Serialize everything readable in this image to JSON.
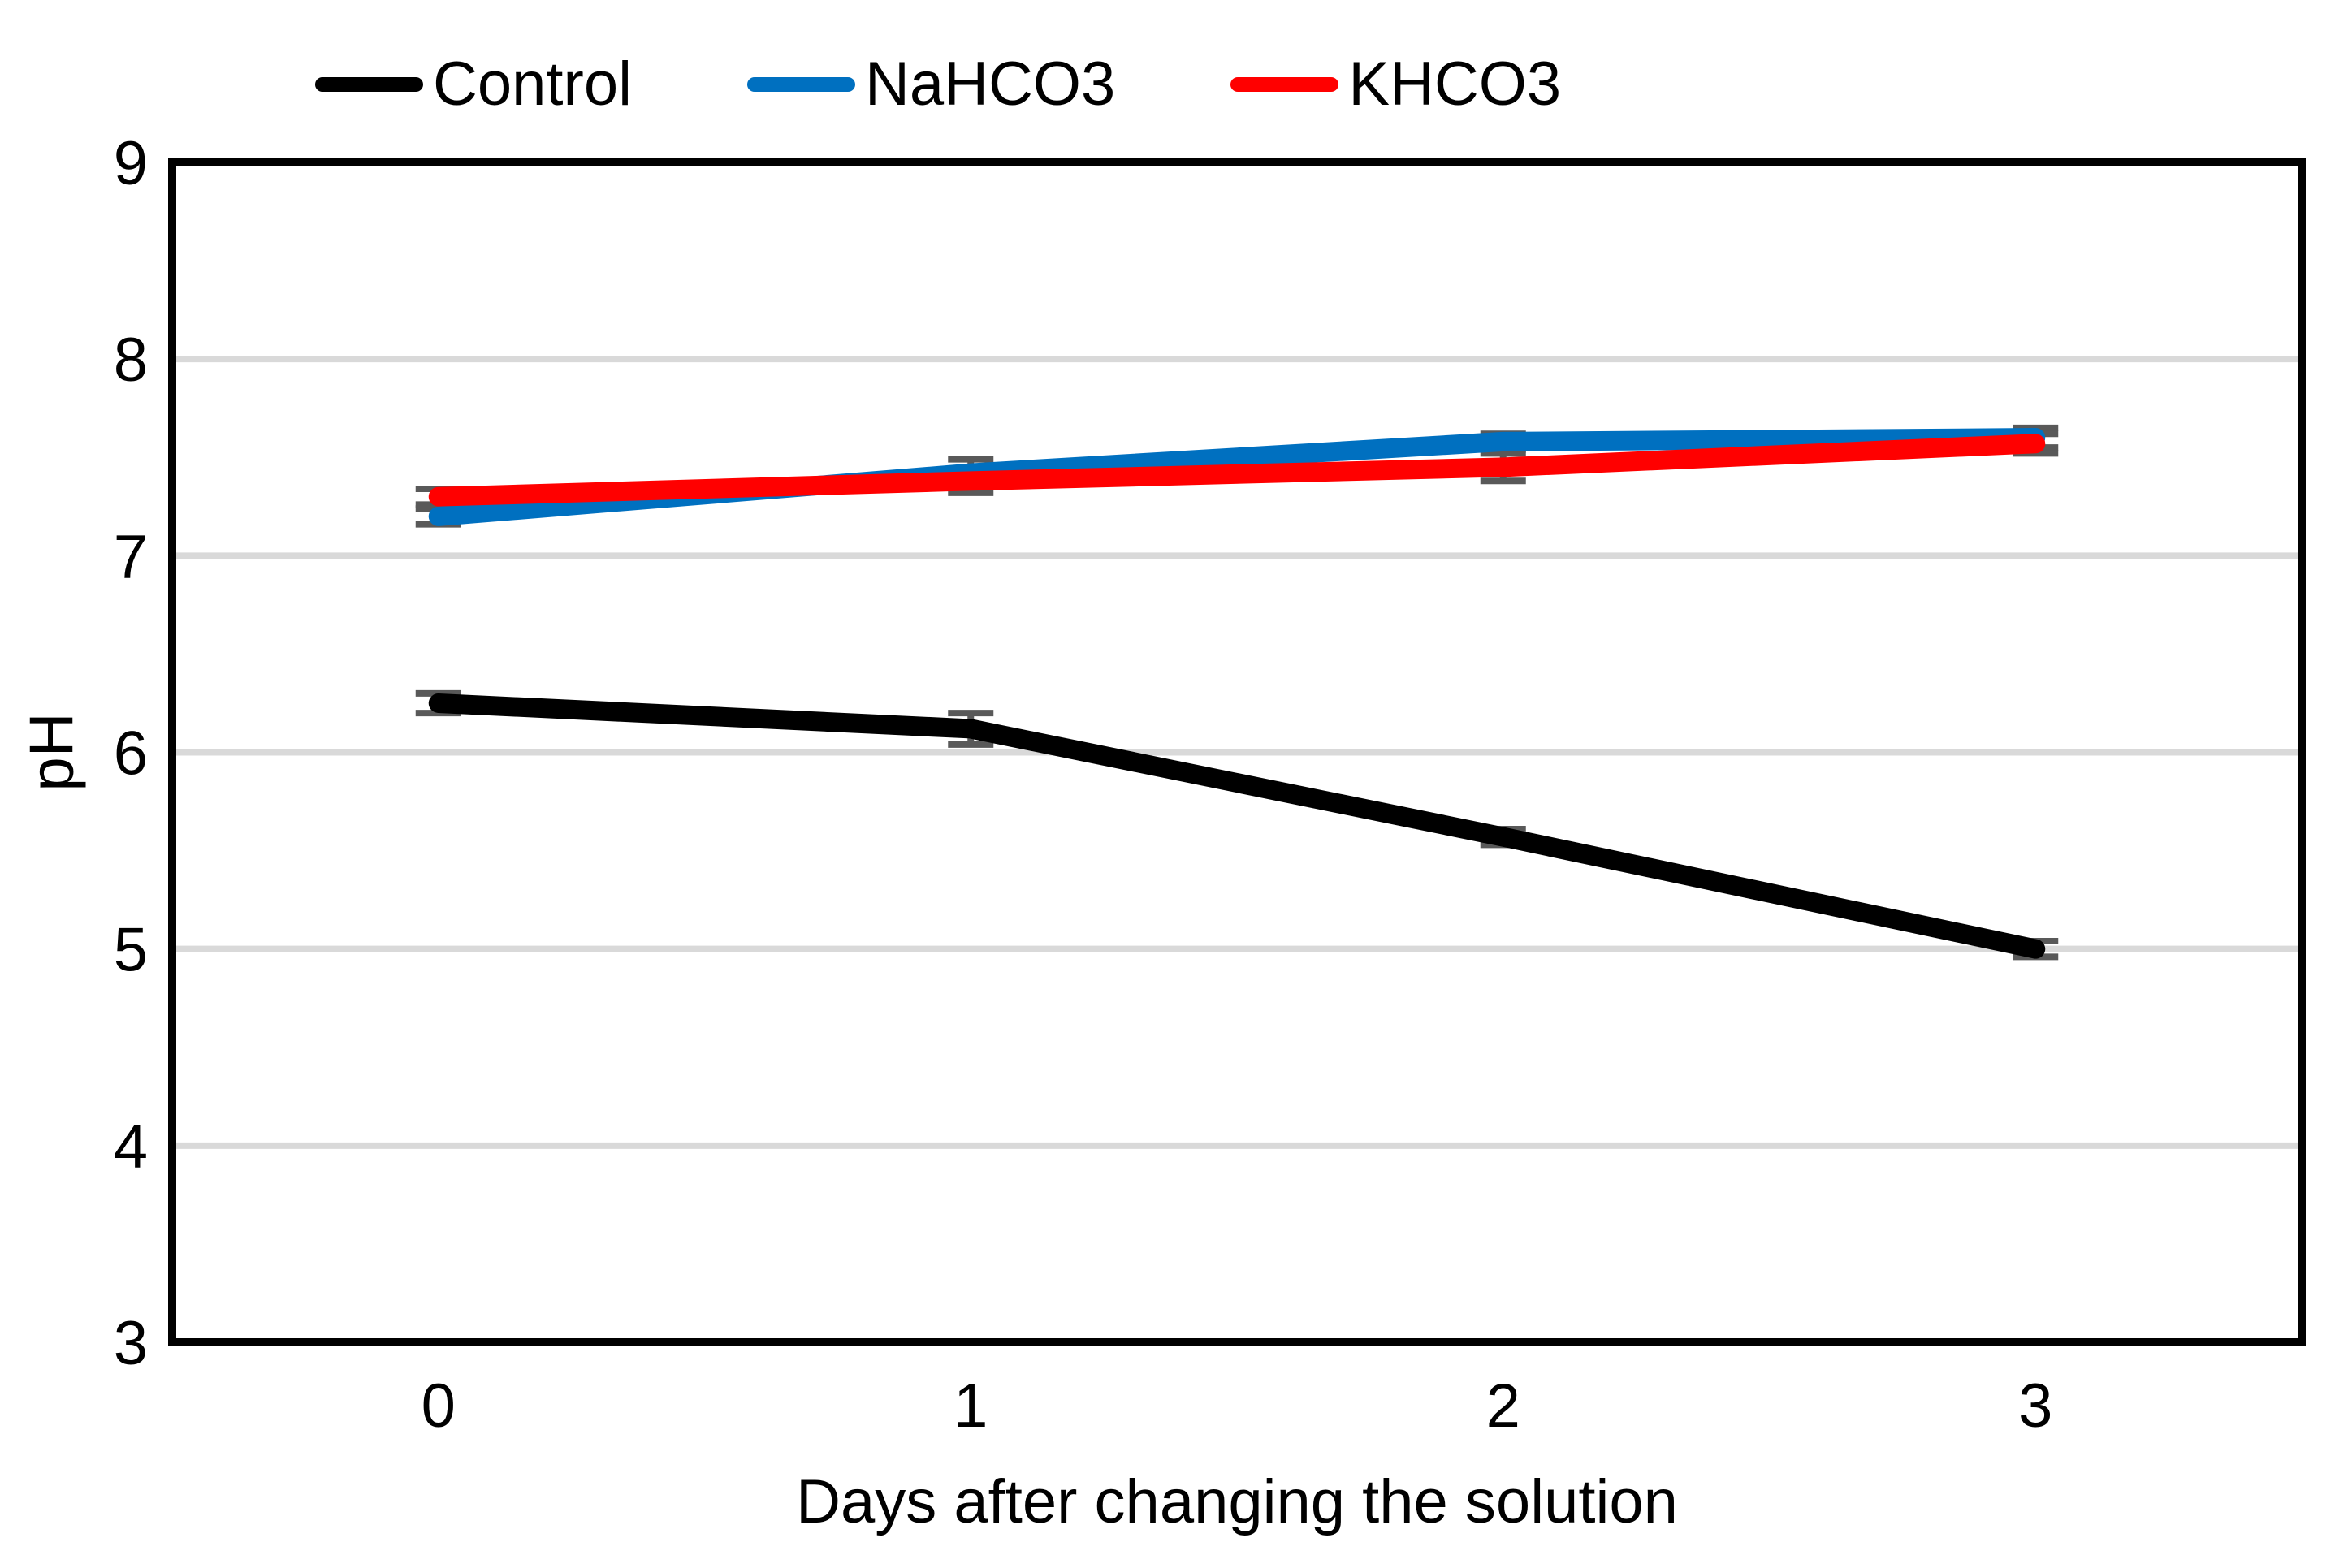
{
  "chart_data": {
    "type": "line",
    "title": "",
    "xlabel": "Days after changing the solution",
    "ylabel": "pH",
    "x": [
      0,
      1,
      2,
      3
    ],
    "x_tick_labels": [
      "0",
      "1",
      "2",
      "3"
    ],
    "ylim": [
      3,
      9
    ],
    "yticks": [
      3,
      4,
      5,
      6,
      7,
      8,
      9
    ],
    "grid": "horizontal",
    "legend_position": "top",
    "series": [
      {
        "name": "Control",
        "color": "#000000",
        "values": [
          6.25,
          6.12,
          5.57,
          5.0
        ],
        "error": [
          0.05,
          0.08,
          0.04,
          0.04
        ]
      },
      {
        "name": "NaHCO3",
        "color": "#0070C0",
        "values": [
          7.2,
          7.42,
          7.58,
          7.6
        ],
        "error": [
          0.04,
          0.07,
          0.04,
          0.05
        ]
      },
      {
        "name": "KHCO3",
        "color": "#FF0000",
        "values": [
          7.3,
          7.38,
          7.45,
          7.57
        ],
        "error": [
          0.04,
          0.06,
          0.07,
          0.05
        ]
      }
    ],
    "error_bar_color": "#595959",
    "gridline_color": "#D9D9D9",
    "axis_color": "#000000"
  }
}
